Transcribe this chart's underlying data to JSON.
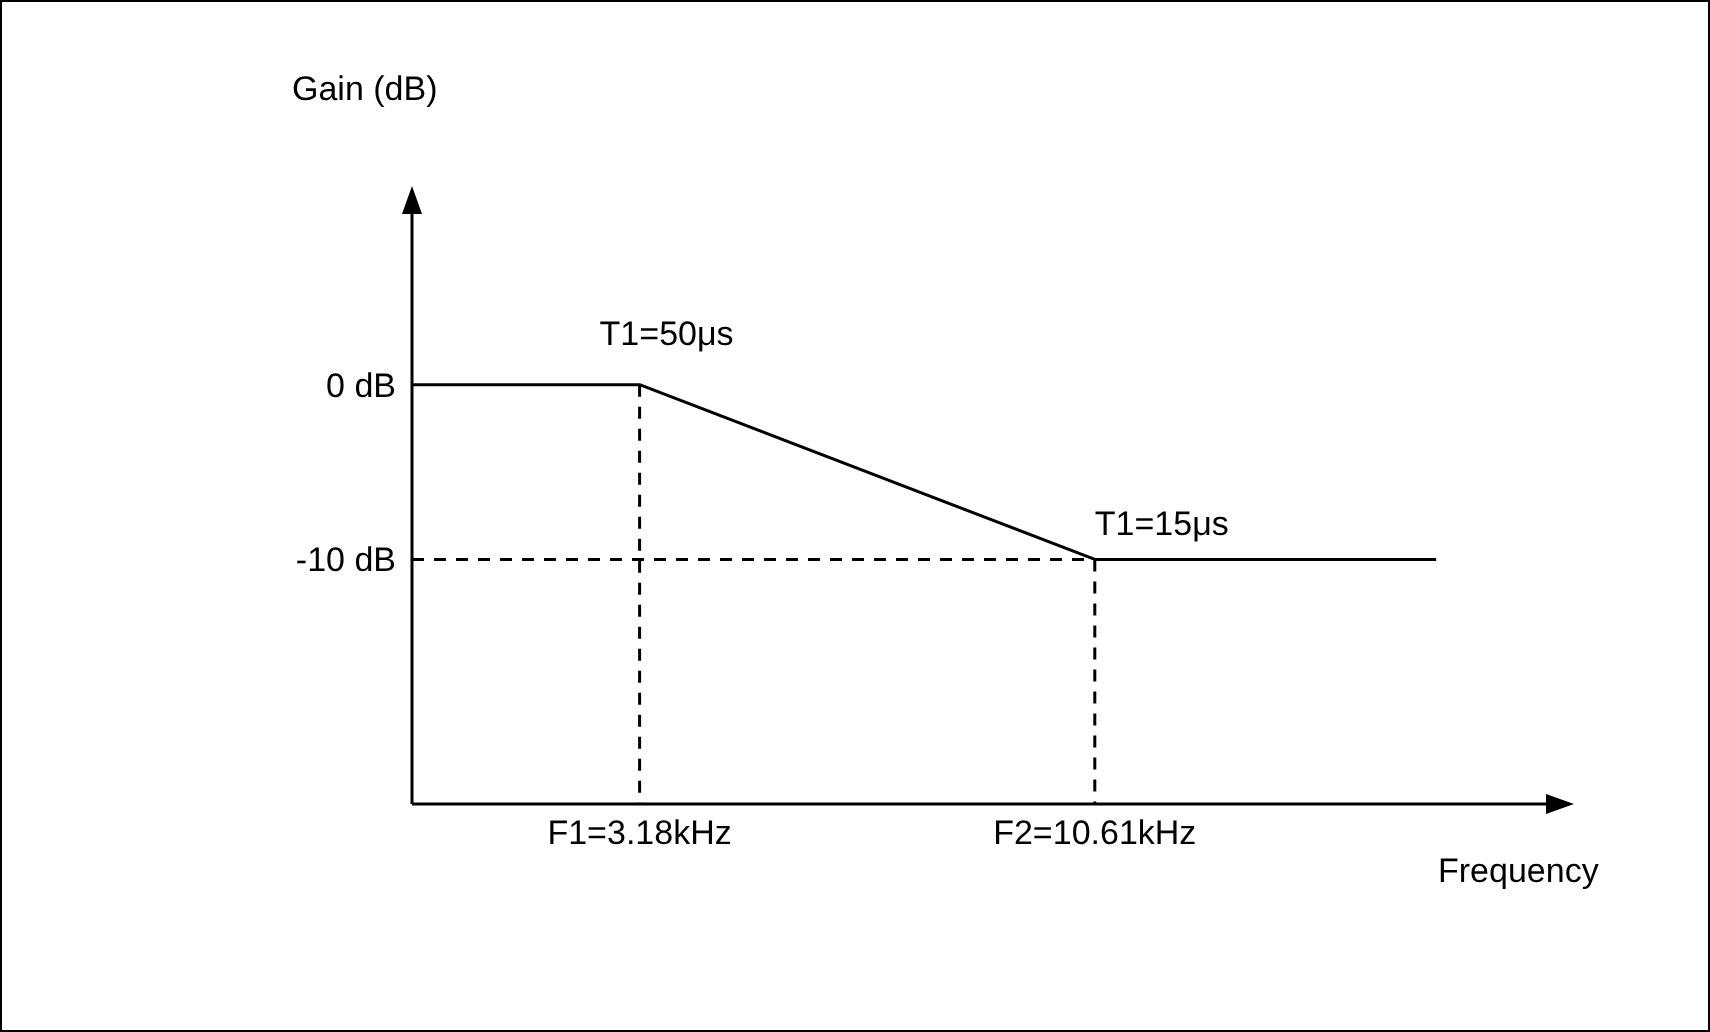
{
  "chart_data": {
    "type": "line",
    "xlabel": "Frequency",
    "ylabel": "Gain (dB)",
    "ylim": [
      -24,
      10
    ],
    "categories": [
      null,
      null,
      "F1=3.18kHz",
      null,
      null,
      null,
      "F2=10.61kHz",
      null,
      null,
      null,
      null
    ],
    "yticks": [
      {
        "value": 0,
        "label": "0 dB"
      },
      {
        "value": -10,
        "label": "-10 dB"
      }
    ],
    "grid": false,
    "marker": "none",
    "line_style": "solid",
    "series": [
      {
        "color": "#000000",
        "values": [
          0,
          null,
          0,
          null,
          null,
          null,
          -10,
          null,
          null,
          -10,
          null
        ]
      },
      {
        "color": "#000000",
        "line_style": "dashed",
        "values": [
          -10,
          null,
          null,
          null,
          null,
          null,
          -10,
          null,
          null,
          null,
          null
        ]
      },
      {
        "color": "#000000",
        "line_style": "dashed",
        "x": [
          "F1=3.18kHz",
          "F1=3.18kHz"
        ],
        "values": [
          0,
          -24
        ]
      },
      {
        "color": "#000000",
        "line_style": "dashed",
        "x": [
          "F2=10.61kHz",
          "F2=10.61kHz"
        ],
        "values": [
          -10,
          -24
        ]
      }
    ],
    "annotations": [
      {
        "text": "T1=50μs",
        "x": "F1=3.18kHz",
        "y": 0
      },
      {
        "text": "T1=15μs",
        "x": "F2=10.61kHz",
        "y": -10
      }
    ]
  }
}
